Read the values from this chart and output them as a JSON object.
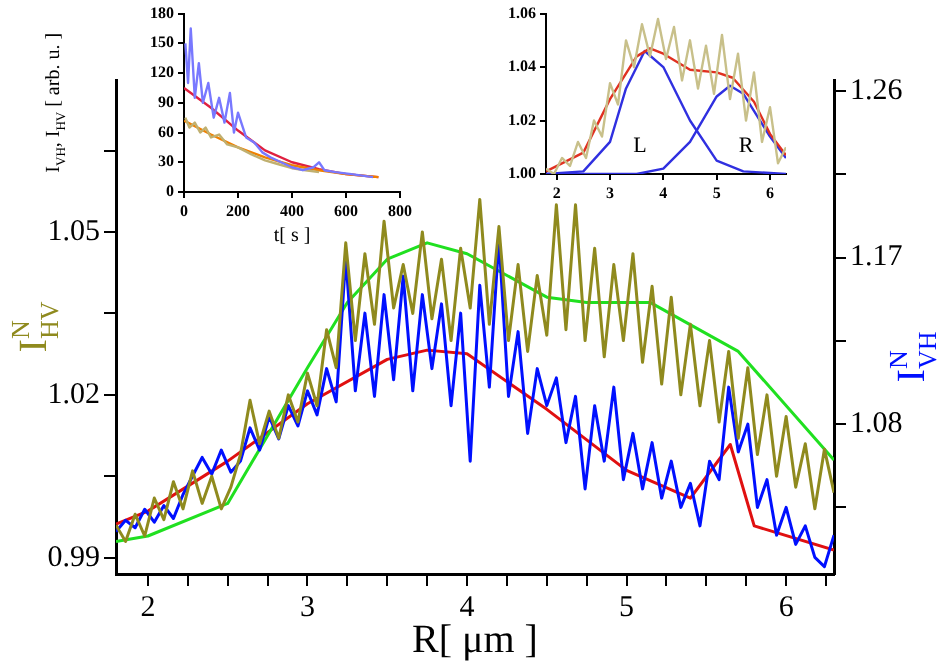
{
  "chart_data": [
    {
      "type": "line",
      "xlabel": "R[ μm ]",
      "ylabel": "I$^{N}$$_{HV}$",
      "y2label": "I$^{N}$$_{VH}$",
      "xlim": [
        1.8,
        6.3
      ],
      "ylim": [
        0.987,
        1.078
      ],
      "y2lim": [
        0.999,
        1.266
      ],
      "xticks": [
        2,
        {
          "value": 2.25,
          "label": null
        },
        {
          "value": 2.5,
          "label": null
        },
        {
          "value": 2.75,
          "label": null
        },
        3,
        {
          "value": 3.25,
          "label": null
        },
        {
          "value": 3.5,
          "label": null
        },
        {
          "value": 3.75,
          "label": null
        },
        4,
        {
          "value": 4.25,
          "label": null
        },
        {
          "value": 4.5,
          "label": null
        },
        {
          "value": 4.75,
          "label": null
        },
        5,
        {
          "value": 5.25,
          "label": null
        },
        {
          "value": 5.5,
          "label": null
        },
        {
          "value": 5.75,
          "label": null
        },
        6,
        {
          "value": 6.25,
          "label": null
        }
      ],
      "yticks": [
        0.99,
        {
          "value": 1.005,
          "label": null
        },
        1.02,
        {
          "value": 1.035,
          "label": null
        },
        1.05,
        {
          "value": 1.065,
          "label": null
        }
      ],
      "y2ticks": [
        {
          "value": 1.035,
          "label": null
        },
        1.08,
        {
          "value": 1.125,
          "label": null
        },
        1.17,
        {
          "value": 1.215,
          "label": null
        },
        1.26
      ],
      "series": [
        {
          "color": "#8f8a1e",
          "x": [
            1.8,
            1.86,
            1.92,
            1.98,
            2.04,
            2.1,
            2.16,
            2.22,
            2.28,
            2.34,
            2.4,
            2.46,
            2.52,
            2.58,
            2.64,
            2.7,
            2.76,
            2.82,
            2.88,
            2.94,
            3,
            3.06,
            3.12,
            3.18,
            3.24,
            3.3,
            3.36,
            3.42,
            3.48,
            3.54,
            3.6,
            3.66,
            3.72,
            3.78,
            3.84,
            3.9,
            3.96,
            4.02,
            4.08,
            4.14,
            4.2,
            4.26,
            4.32,
            4.38,
            4.44,
            4.5,
            4.56,
            4.62,
            4.68,
            4.74,
            4.8,
            4.86,
            4.92,
            4.98,
            5.04,
            5.1,
            5.16,
            5.22,
            5.28,
            5.34,
            5.4,
            5.46,
            5.52,
            5.58,
            5.64,
            5.7,
            5.76,
            5.82,
            5.88,
            5.94,
            6,
            6.06,
            6.12,
            6.18,
            6.24,
            6.3
          ],
          "values": [
            0.996,
            0.993,
            0.998,
            0.994,
            1.001,
            0.997,
            1.004,
            0.999,
            1.006,
            1.0,
            1.005,
            0.999,
            1.003,
            1.009,
            1.019,
            1.011,
            1.017,
            1.012,
            1.02,
            1.015,
            1.024,
            1.018,
            1.032,
            1.025,
            1.048,
            1.03,
            1.046,
            1.033,
            1.052,
            1.036,
            1.044,
            1.035,
            1.05,
            1.034,
            1.045,
            1.03,
            1.047,
            1.036,
            1.056,
            1.033,
            1.051,
            1.03,
            1.044,
            1.028,
            1.042,
            1.031,
            1.055,
            1.032,
            1.055,
            1.03,
            1.047,
            1.027,
            1.044,
            1.03,
            1.046,
            1.026,
            1.04,
            1.022,
            1.038,
            1.02,
            1.033,
            1.018,
            1.03,
            1.015,
            1.028,
            1.012,
            1.025,
            1.009,
            1.02,
            1.005,
            1.016,
            1.003,
            1.011,
            0.999,
            1.01,
            1.002
          ]
        },
        {
          "color": "#0010ff",
          "axis": "y2",
          "x": [
            1.8,
            1.86,
            1.92,
            1.98,
            2.04,
            2.1,
            2.16,
            2.22,
            2.28,
            2.34,
            2.4,
            2.46,
            2.52,
            2.58,
            2.64,
            2.7,
            2.76,
            2.82,
            2.88,
            2.94,
            3,
            3.06,
            3.12,
            3.18,
            3.24,
            3.3,
            3.36,
            3.42,
            3.48,
            3.54,
            3.6,
            3.66,
            3.72,
            3.78,
            3.84,
            3.9,
            3.96,
            4.02,
            4.08,
            4.14,
            4.2,
            4.26,
            4.32,
            4.38,
            4.44,
            4.5,
            4.56,
            4.62,
            4.68,
            4.74,
            4.8,
            4.86,
            4.92,
            4.98,
            5.04,
            5.1,
            5.16,
            5.22,
            5.28,
            5.34,
            5.4,
            5.46,
            5.52,
            5.58,
            5.64,
            5.7,
            5.76,
            5.82,
            5.88,
            5.94,
            6,
            6.06,
            6.12,
            6.18,
            6.24,
            6.3
          ],
          "values": [
            1.022,
            1.028,
            1.024,
            1.034,
            1.027,
            1.036,
            1.029,
            1.042,
            1.052,
            1.062,
            1.053,
            1.066,
            1.054,
            1.06,
            1.078,
            1.066,
            1.084,
            1.072,
            1.09,
            1.079,
            1.098,
            1.085,
            1.11,
            1.092,
            1.17,
            1.098,
            1.14,
            1.095,
            1.15,
            1.104,
            1.16,
            1.098,
            1.15,
            1.11,
            1.145,
            1.09,
            1.14,
            1.06,
            1.155,
            1.1,
            1.18,
            1.095,
            1.13,
            1.075,
            1.11,
            1.09,
            1.105,
            1.07,
            1.095,
            1.045,
            1.09,
            1.06,
            1.1,
            1.05,
            1.075,
            1.045,
            1.07,
            1.04,
            1.06,
            1.035,
            1.048,
            1.025,
            1.06,
            1.05,
            1.1,
            1.065,
            1.08,
            1.035,
            1.05,
            1.02,
            1.035,
            1.015,
            1.025,
            1.008,
            1.003,
            1.02
          ]
        },
        {
          "color": "#20e020",
          "x": [
            1.8,
            2,
            2.5,
            3,
            3.25,
            3.5,
            3.75,
            4,
            4.5,
            4.75,
            5.15,
            5.7,
            6.3
          ],
          "values": [
            0.993,
            0.994,
            1.0,
            1.025,
            1.037,
            1.045,
            1.048,
            1.046,
            1.038,
            1.037,
            1.037,
            1.028,
            1.008
          ]
        },
        {
          "color": "#e01010",
          "axis": "y2",
          "x": [
            1.8,
            2,
            2.5,
            3,
            3.5,
            3.75,
            4,
            4.5,
            5,
            5.4,
            5.65,
            5.8,
            6.3
          ],
          "values": [
            1.026,
            1.033,
            1.06,
            1.091,
            1.115,
            1.12,
            1.118,
            1.088,
            1.055,
            1.04,
            1.069,
            1.025,
            1.012
          ]
        }
      ]
    },
    {
      "type": "line",
      "xlabel": "t[ s ]",
      "ylabel": "I$_{VH}$, I$_{HV}$ [ arb. u. ]",
      "xlim": [
        0,
        800
      ],
      "ylim": [
        0,
        180
      ],
      "xticks": [
        0,
        200,
        400,
        600,
        800
      ],
      "yticks": [
        0,
        30,
        60,
        90,
        120,
        150,
        180
      ],
      "series": [
        {
          "color": "#7878ff",
          "x": [
            5,
            15,
            25,
            40,
            55,
            70,
            90,
            110,
            130,
            150,
            170,
            185,
            200,
            230,
            260,
            290,
            320,
            360,
            400,
            440,
            480,
            500,
            520,
            560,
            620,
            700
          ],
          "values": [
            150,
            110,
            165,
            95,
            130,
            90,
            110,
            75,
            95,
            70,
            100,
            60,
            80,
            55,
            50,
            40,
            35,
            30,
            25,
            22,
            25,
            30,
            22,
            20,
            18,
            15
          ]
        },
        {
          "color": "#c0b070",
          "x": [
            5,
            20,
            40,
            60,
            80,
            100,
            130,
            160,
            200,
            250,
            300,
            350,
            400,
            450,
            500
          ],
          "values": [
            75,
            65,
            70,
            60,
            65,
            55,
            58,
            48,
            45,
            38,
            32,
            28,
            24,
            22,
            20
          ]
        },
        {
          "color": "#f08000",
          "x": [
            0,
            100,
            200,
            300,
            400,
            500,
            600,
            720
          ],
          "values": [
            72,
            58,
            45,
            35,
            27,
            22,
            18,
            15
          ]
        },
        {
          "color": "#e02040",
          "x": [
            0,
            100,
            200,
            300,
            400,
            500,
            600,
            720
          ],
          "values": [
            105,
            85,
            62,
            42,
            30,
            23,
            18,
            15
          ]
        }
      ]
    },
    {
      "type": "line",
      "xlim": [
        1.8,
        6.3
      ],
      "ylim": [
        1.0,
        1.06
      ],
      "xticks": [
        2,
        3,
        4,
        5,
        6
      ],
      "yticks": [
        {
          "value": 1.0,
          "label": "1.00"
        },
        1.02,
        1.04,
        1.06
      ],
      "annotations": [
        "L",
        "R"
      ],
      "series": [
        {
          "color": "#c8c08a",
          "x": [
            1.8,
            1.95,
            2.1,
            2.25,
            2.4,
            2.55,
            2.7,
            2.85,
            3,
            3.15,
            3.3,
            3.45,
            3.6,
            3.75,
            3.9,
            4.05,
            4.2,
            4.35,
            4.5,
            4.65,
            4.8,
            4.95,
            5.1,
            5.25,
            5.4,
            5.55,
            5.7,
            5.85,
            6,
            6.15,
            6.3
          ],
          "values": [
            1.002,
            1.0,
            1.006,
            1.003,
            1.012,
            1.006,
            1.02,
            1.014,
            1.034,
            1.026,
            1.05,
            1.04,
            1.056,
            1.044,
            1.058,
            1.043,
            1.055,
            1.035,
            1.05,
            1.032,
            1.048,
            1.03,
            1.052,
            1.028,
            1.045,
            1.02,
            1.038,
            1.012,
            1.025,
            1.004,
            1.01
          ]
        },
        {
          "color": "#e03020",
          "x": [
            1.8,
            2.5,
            3,
            3.5,
            3.75,
            4,
            4.5,
            5,
            5.3,
            5.7,
            6,
            6.3
          ],
          "values": [
            1.001,
            1.008,
            1.028,
            1.044,
            1.047,
            1.045,
            1.039,
            1.038,
            1.036,
            1.027,
            1.015,
            1.007
          ]
        },
        {
          "color": "#3030e0",
          "x": [
            1.8,
            2.5,
            3,
            3.3,
            3.65,
            4,
            4.5,
            5,
            5.5,
            6.3
          ],
          "values": [
            1.0,
            1.001,
            1.012,
            1.032,
            1.046,
            1.04,
            1.02,
            1.005,
            1.001,
            1.0
          ]
        },
        {
          "color": "#3030e0",
          "x": [
            1.8,
            3.5,
            4,
            4.5,
            5,
            5.25,
            5.5,
            6,
            6.3
          ],
          "values": [
            1.0,
            1.0,
            1.002,
            1.012,
            1.029,
            1.033,
            1.03,
            1.014,
            1.006
          ]
        }
      ]
    }
  ]
}
